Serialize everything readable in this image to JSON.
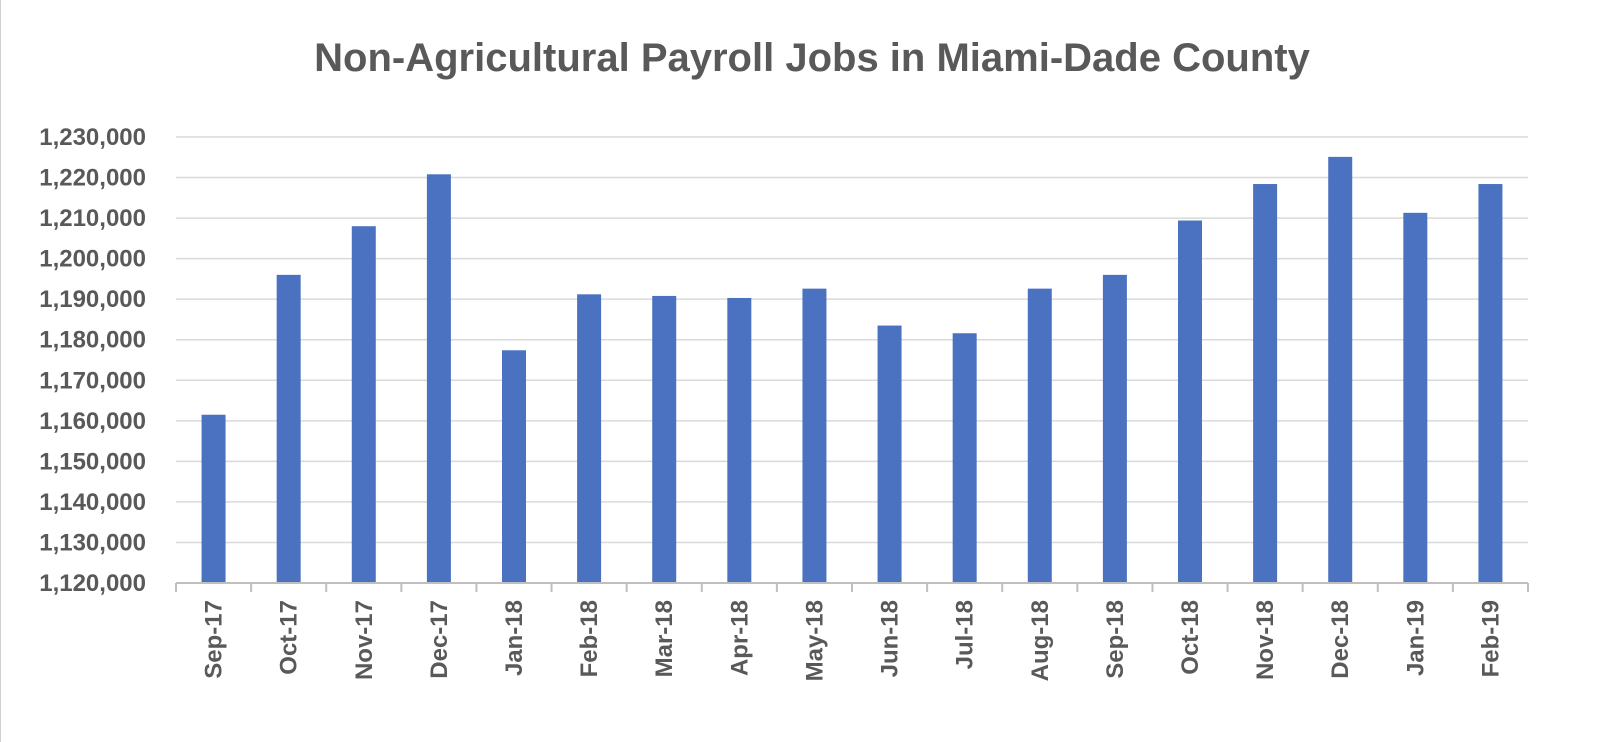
{
  "chart_data": {
    "type": "bar",
    "title": "Non-Agricultural Payroll Jobs in Miami-Dade County",
    "xlabel": "",
    "ylabel": "",
    "categories": [
      "Sep-17",
      "Oct-17",
      "Nov-17",
      "Dec-17",
      "Jan-18",
      "Feb-18",
      "Mar-18",
      "Apr-18",
      "May-18",
      "Jun-18",
      "Jul-18",
      "Aug-18",
      "Sep-18",
      "Oct-18",
      "Nov-18",
      "Dec-18",
      "Jan-19",
      "Feb-19"
    ],
    "values": [
      1161500,
      1196000,
      1208000,
      1220800,
      1177400,
      1191200,
      1190800,
      1190300,
      1192600,
      1183500,
      1181600,
      1192600,
      1196000,
      1209400,
      1218400,
      1225100,
      1211300,
      1218400
    ],
    "ylim": [
      1120000,
      1230000
    ],
    "yticks": [
      1120000,
      1130000,
      1140000,
      1150000,
      1160000,
      1170000,
      1180000,
      1190000,
      1200000,
      1210000,
      1220000,
      1230000
    ],
    "ytick_labels": [
      "1,120,000",
      "1,130,000",
      "1,140,000",
      "1,150,000",
      "1,160,000",
      "1,170,000",
      "1,180,000",
      "1,190,000",
      "1,200,000",
      "1,210,000",
      "1,220,000",
      "1,230,000"
    ],
    "grid": true,
    "legend": "none",
    "colors": {
      "bar": "#4a72c0",
      "grid": "#d9d9d9",
      "axis": "#bfbfbf",
      "text": "#595959"
    }
  }
}
